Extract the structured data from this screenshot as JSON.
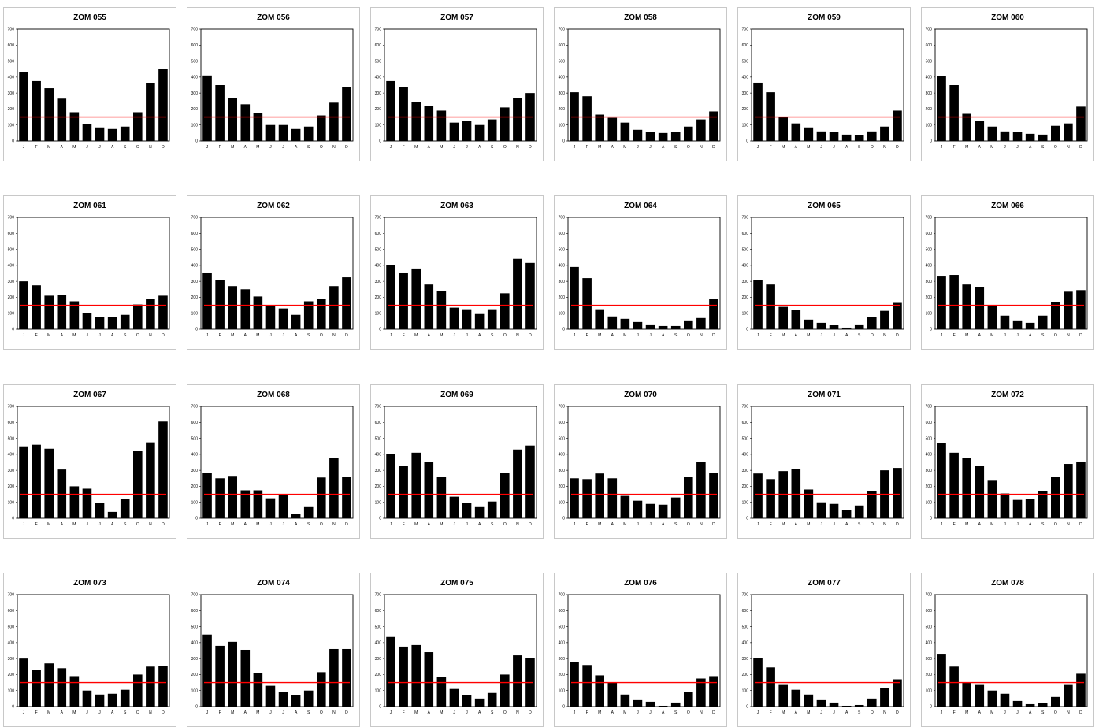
{
  "chart_data": [
    {
      "type": "bar",
      "title": "ZOM 055",
      "categories": [
        "J",
        "F",
        "M",
        "A",
        "M",
        "J",
        "J",
        "A",
        "S",
        "O",
        "N",
        "D"
      ],
      "values": [
        430,
        375,
        330,
        265,
        180,
        105,
        85,
        75,
        90,
        180,
        360,
        450
      ],
      "reference_line": 150,
      "ylim": [
        0,
        700
      ],
      "yticks": [
        0,
        100,
        200,
        300,
        400,
        500,
        600,
        700
      ]
    },
    {
      "type": "bar",
      "title": "ZOM 056",
      "categories": [
        "J",
        "F",
        "M",
        "A",
        "M",
        "J",
        "J",
        "A",
        "S",
        "O",
        "N",
        "D"
      ],
      "values": [
        410,
        350,
        270,
        230,
        175,
        100,
        100,
        75,
        90,
        160,
        240,
        340
      ],
      "reference_line": 150,
      "ylim": [
        0,
        700
      ],
      "yticks": [
        0,
        100,
        200,
        300,
        400,
        500,
        600,
        700
      ]
    },
    {
      "type": "bar",
      "title": "ZOM 057",
      "categories": [
        "J",
        "F",
        "M",
        "A",
        "M",
        "J",
        "J",
        "A",
        "S",
        "O",
        "N",
        "D"
      ],
      "values": [
        375,
        340,
        245,
        220,
        190,
        115,
        125,
        100,
        135,
        210,
        270,
        300
      ],
      "reference_line": 150,
      "ylim": [
        0,
        700
      ],
      "yticks": [
        0,
        100,
        200,
        300,
        400,
        500,
        600,
        700
      ]
    },
    {
      "type": "bar",
      "title": "ZOM 058",
      "categories": [
        "J",
        "F",
        "M",
        "A",
        "M",
        "J",
        "J",
        "A",
        "S",
        "O",
        "N",
        "D"
      ],
      "values": [
        305,
        280,
        165,
        145,
        115,
        70,
        55,
        50,
        55,
        90,
        135,
        185
      ],
      "reference_line": 150,
      "ylim": [
        0,
        700
      ],
      "yticks": [
        0,
        100,
        200,
        300,
        400,
        500,
        600,
        700
      ]
    },
    {
      "type": "bar",
      "title": "ZOM 059",
      "categories": [
        "J",
        "F",
        "M",
        "A",
        "M",
        "J",
        "J",
        "A",
        "S",
        "O",
        "N",
        "D"
      ],
      "values": [
        365,
        305,
        150,
        110,
        85,
        60,
        55,
        40,
        35,
        60,
        90,
        190
      ],
      "reference_line": 150,
      "ylim": [
        0,
        700
      ],
      "yticks": [
        0,
        100,
        200,
        300,
        400,
        500,
        600,
        700
      ]
    },
    {
      "type": "bar",
      "title": "ZOM 060",
      "categories": [
        "J",
        "F",
        "M",
        "A",
        "M",
        "J",
        "J",
        "A",
        "S",
        "O",
        "N",
        "D"
      ],
      "values": [
        405,
        350,
        170,
        125,
        90,
        60,
        55,
        45,
        40,
        95,
        110,
        215
      ],
      "reference_line": 150,
      "ylim": [
        0,
        700
      ],
      "yticks": [
        0,
        100,
        200,
        300,
        400,
        500,
        600,
        700
      ]
    },
    {
      "type": "bar",
      "title": "ZOM 061",
      "categories": [
        "J",
        "F",
        "M",
        "A",
        "M",
        "J",
        "J",
        "A",
        "S",
        "O",
        "N",
        "D"
      ],
      "values": [
        300,
        275,
        210,
        215,
        175,
        100,
        75,
        75,
        90,
        155,
        190,
        210
      ],
      "reference_line": 150,
      "ylim": [
        0,
        700
      ],
      "yticks": [
        0,
        100,
        200,
        300,
        400,
        500,
        600,
        700
      ]
    },
    {
      "type": "bar",
      "title": "ZOM 062",
      "categories": [
        "J",
        "F",
        "M",
        "A",
        "M",
        "J",
        "J",
        "A",
        "S",
        "O",
        "N",
        "D"
      ],
      "values": [
        355,
        310,
        270,
        250,
        205,
        145,
        130,
        90,
        175,
        190,
        270,
        325
      ],
      "reference_line": 150,
      "ylim": [
        0,
        700
      ],
      "yticks": [
        0,
        100,
        200,
        300,
        400,
        500,
        600,
        700
      ]
    },
    {
      "type": "bar",
      "title": "ZOM 063",
      "categories": [
        "J",
        "F",
        "M",
        "A",
        "M",
        "J",
        "J",
        "A",
        "S",
        "O",
        "N",
        "D"
      ],
      "values": [
        400,
        355,
        380,
        280,
        240,
        135,
        125,
        95,
        125,
        225,
        440,
        415
      ],
      "reference_line": 150,
      "ylim": [
        0,
        700
      ],
      "yticks": [
        0,
        100,
        200,
        300,
        400,
        500,
        600,
        700
      ]
    },
    {
      "type": "bar",
      "title": "ZOM 064",
      "categories": [
        "J",
        "F",
        "M",
        "A",
        "M",
        "J",
        "J",
        "A",
        "S",
        "O",
        "N",
        "D"
      ],
      "values": [
        390,
        320,
        125,
        80,
        65,
        45,
        30,
        20,
        20,
        55,
        70,
        190
      ],
      "reference_line": 150,
      "ylim": [
        0,
        700
      ],
      "yticks": [
        0,
        100,
        200,
        300,
        400,
        500,
        600,
        700
      ]
    },
    {
      "type": "bar",
      "title": "ZOM 065",
      "categories": [
        "J",
        "F",
        "M",
        "A",
        "M",
        "J",
        "J",
        "A",
        "S",
        "O",
        "N",
        "D"
      ],
      "values": [
        310,
        280,
        140,
        120,
        60,
        40,
        25,
        10,
        30,
        75,
        115,
        165
      ],
      "reference_line": 150,
      "ylim": [
        0,
        700
      ],
      "yticks": [
        0,
        100,
        200,
        300,
        400,
        500,
        600,
        700
      ]
    },
    {
      "type": "bar",
      "title": "ZOM 066",
      "categories": [
        "J",
        "F",
        "M",
        "A",
        "M",
        "J",
        "J",
        "A",
        "S",
        "O",
        "N",
        "D"
      ],
      "values": [
        330,
        340,
        280,
        265,
        145,
        85,
        55,
        40,
        85,
        170,
        235,
        245
      ],
      "reference_line": 150,
      "ylim": [
        0,
        700
      ],
      "yticks": [
        0,
        100,
        200,
        300,
        400,
        500,
        600,
        700
      ]
    },
    {
      "type": "bar",
      "title": "ZOM 067",
      "categories": [
        "J",
        "F",
        "M",
        "A",
        "M",
        "J",
        "J",
        "A",
        "S",
        "O",
        "N",
        "D"
      ],
      "values": [
        450,
        460,
        435,
        305,
        200,
        185,
        95,
        40,
        120,
        420,
        475,
        605
      ],
      "reference_line": 150,
      "ylim": [
        0,
        700
      ],
      "yticks": [
        0,
        100,
        200,
        300,
        400,
        500,
        600,
        700
      ]
    },
    {
      "type": "bar",
      "title": "ZOM 068",
      "categories": [
        "J",
        "F",
        "M",
        "A",
        "M",
        "J",
        "J",
        "A",
        "S",
        "O",
        "N",
        "D"
      ],
      "values": [
        285,
        250,
        265,
        175,
        175,
        125,
        145,
        25,
        70,
        255,
        375,
        260
      ],
      "reference_line": 150,
      "ylim": [
        0,
        700
      ],
      "yticks": [
        0,
        100,
        200,
        300,
        400,
        500,
        600,
        700
      ]
    },
    {
      "type": "bar",
      "title": "ZOM 069",
      "categories": [
        "J",
        "F",
        "M",
        "A",
        "M",
        "J",
        "J",
        "A",
        "S",
        "O",
        "N",
        "D"
      ],
      "values": [
        400,
        330,
        410,
        350,
        260,
        135,
        95,
        70,
        105,
        285,
        430,
        455
      ],
      "reference_line": 150,
      "ylim": [
        0,
        700
      ],
      "yticks": [
        0,
        100,
        200,
        300,
        400,
        500,
        600,
        700
      ]
    },
    {
      "type": "bar",
      "title": "ZOM 070",
      "categories": [
        "J",
        "F",
        "M",
        "A",
        "M",
        "J",
        "J",
        "A",
        "S",
        "O",
        "N",
        "D"
      ],
      "values": [
        250,
        245,
        280,
        250,
        140,
        110,
        90,
        85,
        130,
        260,
        350,
        285
      ],
      "reference_line": 150,
      "ylim": [
        0,
        700
      ],
      "yticks": [
        0,
        100,
        200,
        300,
        400,
        500,
        600,
        700
      ]
    },
    {
      "type": "bar",
      "title": "ZOM 071",
      "categories": [
        "J",
        "F",
        "M",
        "A",
        "M",
        "J",
        "J",
        "A",
        "S",
        "O",
        "N",
        "D"
      ],
      "values": [
        280,
        245,
        295,
        310,
        180,
        100,
        90,
        50,
        80,
        170,
        300,
        315
      ],
      "reference_line": 150,
      "ylim": [
        0,
        700
      ],
      "yticks": [
        0,
        100,
        200,
        300,
        400,
        500,
        600,
        700
      ]
    },
    {
      "type": "bar",
      "title": "ZOM 072",
      "categories": [
        "J",
        "F",
        "M",
        "A",
        "M",
        "J",
        "J",
        "A",
        "S",
        "O",
        "N",
        "D"
      ],
      "values": [
        470,
        410,
        375,
        330,
        235,
        155,
        115,
        120,
        170,
        260,
        340,
        355
      ],
      "reference_line": 150,
      "ylim": [
        0,
        700
      ],
      "yticks": [
        0,
        100,
        200,
        300,
        400,
        500,
        600,
        700
      ]
    },
    {
      "type": "bar",
      "title": "ZOM 073",
      "categories": [
        "J",
        "F",
        "M",
        "A",
        "M",
        "J",
        "J",
        "A",
        "S",
        "O",
        "N",
        "D"
      ],
      "values": [
        300,
        230,
        270,
        240,
        190,
        100,
        75,
        80,
        105,
        200,
        250,
        255
      ],
      "reference_line": 150,
      "ylim": [
        0,
        700
      ],
      "yticks": [
        0,
        100,
        200,
        300,
        400,
        500,
        600,
        700
      ]
    },
    {
      "type": "bar",
      "title": "ZOM 074",
      "categories": [
        "J",
        "F",
        "M",
        "A",
        "M",
        "J",
        "J",
        "A",
        "S",
        "O",
        "N",
        "D"
      ],
      "values": [
        450,
        380,
        405,
        355,
        210,
        130,
        90,
        70,
        100,
        215,
        360,
        360
      ],
      "reference_line": 150,
      "ylim": [
        0,
        700
      ],
      "yticks": [
        0,
        100,
        200,
        300,
        400,
        500,
        600,
        700
      ]
    },
    {
      "type": "bar",
      "title": "ZOM 075",
      "categories": [
        "J",
        "F",
        "M",
        "A",
        "M",
        "J",
        "J",
        "A",
        "S",
        "O",
        "N",
        "D"
      ],
      "values": [
        435,
        375,
        385,
        340,
        185,
        110,
        70,
        50,
        85,
        200,
        320,
        305
      ],
      "reference_line": 150,
      "ylim": [
        0,
        700
      ],
      "yticks": [
        0,
        100,
        200,
        300,
        400,
        500,
        600,
        700
      ]
    },
    {
      "type": "bar",
      "title": "ZOM 076",
      "categories": [
        "J",
        "F",
        "M",
        "A",
        "M",
        "J",
        "J",
        "A",
        "S",
        "O",
        "N",
        "D"
      ],
      "values": [
        280,
        260,
        195,
        150,
        75,
        40,
        30,
        5,
        25,
        90,
        175,
        190
      ],
      "reference_line": 150,
      "ylim": [
        0,
        700
      ],
      "yticks": [
        0,
        100,
        200,
        300,
        400,
        500,
        600,
        700
      ]
    },
    {
      "type": "bar",
      "title": "ZOM 077",
      "categories": [
        "J",
        "F",
        "M",
        "A",
        "M",
        "J",
        "J",
        "A",
        "S",
        "O",
        "N",
        "D"
      ],
      "values": [
        305,
        245,
        135,
        105,
        75,
        40,
        25,
        5,
        10,
        50,
        115,
        170
      ],
      "reference_line": 150,
      "ylim": [
        0,
        700
      ],
      "yticks": [
        0,
        100,
        200,
        300,
        400,
        500,
        600,
        700
      ]
    },
    {
      "type": "bar",
      "title": "ZOM 078",
      "categories": [
        "J",
        "F",
        "M",
        "A",
        "M",
        "J",
        "J",
        "A",
        "S",
        "O",
        "N",
        "D"
      ],
      "values": [
        330,
        250,
        150,
        135,
        100,
        80,
        35,
        15,
        20,
        60,
        135,
        205
      ],
      "reference_line": 150,
      "ylim": [
        0,
        700
      ],
      "yticks": [
        0,
        100,
        200,
        300,
        400,
        500,
        600,
        700
      ]
    }
  ],
  "colors": {
    "bar": "#000000",
    "reference_line": "#ff0000",
    "axis": "#000000",
    "panel_border": "#c8c8c8"
  }
}
